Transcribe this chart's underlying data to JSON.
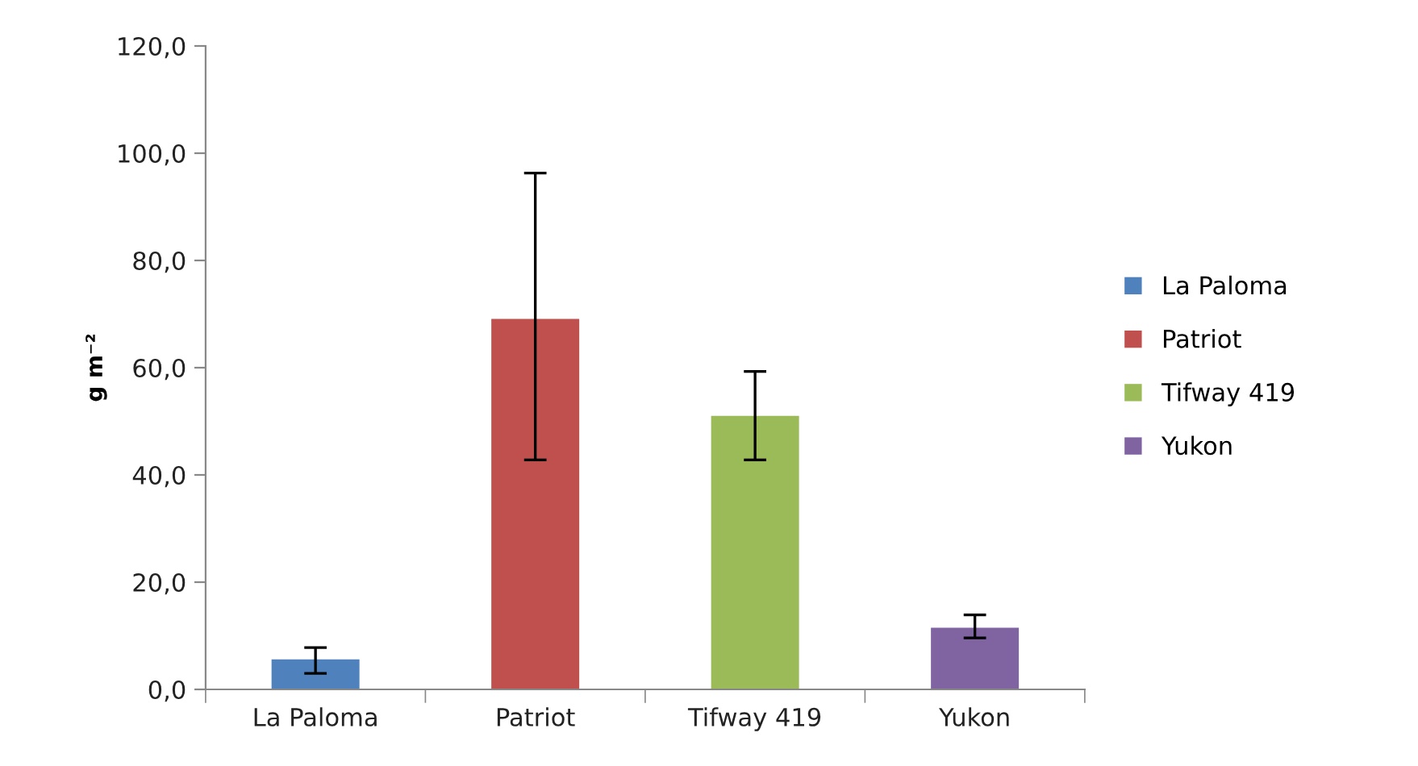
{
  "chart_data": {
    "type": "bar",
    "categories": [
      "La Paloma",
      "Patriot",
      "Tifway 419",
      "Yukon"
    ],
    "series": [
      {
        "name": "La Paloma",
        "color": "#4f81bd",
        "values": [
          5.6,
          null,
          null,
          null
        ],
        "errors": [
          [
            3.0,
            7.8
          ],
          null,
          null,
          null
        ]
      },
      {
        "name": "Patriot",
        "color": "#c0504d",
        "values": [
          null,
          69.1,
          null,
          null
        ],
        "errors": [
          null,
          [
            42.8,
            96.3
          ],
          null,
          null
        ]
      },
      {
        "name": "Tifway 419",
        "color": "#9bbb59",
        "values": [
          null,
          null,
          51.0,
          null
        ],
        "errors": [
          null,
          null,
          [
            42.8,
            59.3
          ],
          null
        ]
      },
      {
        "name": "Yukon",
        "color": "#8064a2",
        "values": [
          null,
          null,
          null,
          11.5
        ],
        "errors": [
          null,
          null,
          null,
          [
            9.6,
            13.9
          ]
        ]
      }
    ],
    "ylabel": "g m⁻²",
    "ylim": [
      0,
      120
    ],
    "yticks": [
      {
        "value": 0,
        "label": "0,0"
      },
      {
        "value": 20,
        "label": "20,0"
      },
      {
        "value": 40,
        "label": "40,0"
      },
      {
        "value": 60,
        "label": "60,0"
      },
      {
        "value": 80,
        "label": "80,0"
      },
      {
        "value": 100,
        "label": "100,0"
      },
      {
        "value": 120,
        "label": "120,0"
      }
    ],
    "legend": "right"
  }
}
